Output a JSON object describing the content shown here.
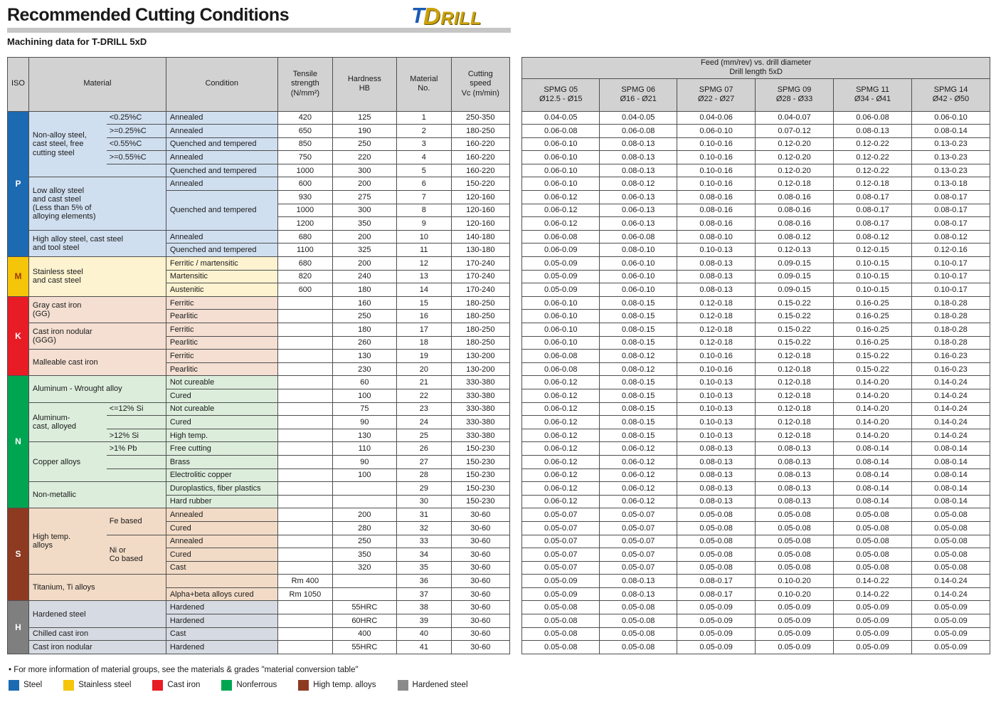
{
  "title": "Recommended Cutting Conditions",
  "subtitle": "Machining data for T-DRILL 5xD",
  "logo": {
    "t": "T",
    "drill": "DRILL"
  },
  "footnote": "• For more information of material groups, see the materials & grades \"material conversion table\"",
  "headers": {
    "iso": "ISO",
    "material": "Material",
    "condition": "Condition",
    "tensile": "Tensile\nstrength\n(N/mm²)",
    "hardness": "Hardness\nHB",
    "material_no": "Material\nNo.",
    "cutting_speed": "Cutting\nspeed\nVc (m/min)"
  },
  "feed_header": {
    "group": "Feed (mm/rev) vs. drill diameter\nDrill length 5xD",
    "columns": [
      {
        "name": "SPMG 05",
        "range": "Ø12.5 - Ø15"
      },
      {
        "name": "SPMG 06",
        "range": "Ø16 - Ø21"
      },
      {
        "name": "SPMG 07",
        "range": "Ø22 - Ø27"
      },
      {
        "name": "SPMG 09",
        "range": "Ø28 - Ø33"
      },
      {
        "name": "SPMG 11",
        "range": "Ø34 - Ø41"
      },
      {
        "name": "SPMG 14",
        "range": "Ø42 - Ø50"
      }
    ]
  },
  "iso_groups": [
    {
      "letter": "P",
      "start": 1,
      "span": 11,
      "color": "#1b6ab2",
      "letter_color": "#ffffff",
      "band": "#d0dff0"
    },
    {
      "letter": "M",
      "start": 12,
      "span": 3,
      "color": "#f5c50a",
      "letter_color": "#9c3a00",
      "band": "#fdf3d1"
    },
    {
      "letter": "K",
      "start": 15,
      "span": 6,
      "color": "#e81c25",
      "letter_color": "#ffffff",
      "band": "#f4dfd2"
    },
    {
      "letter": "N",
      "start": 21,
      "span": 10,
      "color": "#00a551",
      "letter_color": "#ffffff",
      "band": "#dceddc"
    },
    {
      "letter": "S",
      "start": 31,
      "span": 7,
      "color": "#8d3a21",
      "letter_color": "#ffffff",
      "band": "#f2dbc6"
    },
    {
      "letter": "H",
      "start": 38,
      "span": 4,
      "color": "#7f7f7f",
      "letter_color": "#ffffff",
      "band": "#d6dae2"
    }
  ],
  "material_groups": [
    {
      "name": "Non-alloy steel,\ncast steel, free\ncutting steel",
      "start": 1,
      "span": 5,
      "split": true
    },
    {
      "name": "Low alloy steel\nand cast steel\n(Less than 5% of\nalloying elements)",
      "start": 6,
      "span": 4
    },
    {
      "name": "High alloy steel, cast steel\nand tool steel",
      "start": 10,
      "span": 2
    },
    {
      "name": "Stainless steel\nand cast steel",
      "start": 12,
      "span": 3
    },
    {
      "name": "Gray cast iron\n(GG)",
      "start": 15,
      "span": 2
    },
    {
      "name": "Cast iron nodular\n(GGG)",
      "start": 17,
      "span": 2
    },
    {
      "name": "Malleable cast iron",
      "start": 19,
      "span": 2
    },
    {
      "name": "Aluminum - Wrought alloy",
      "start": 21,
      "span": 2
    },
    {
      "name": "Aluminum-\ncast, alloyed",
      "start": 23,
      "span": 3,
      "split": true
    },
    {
      "name": "Copper alloys",
      "start": 26,
      "span": 3,
      "split": true
    },
    {
      "name": "Non-metallic",
      "start": 29,
      "span": 2
    },
    {
      "name": "High temp.\nalloys",
      "start": 31,
      "span": 5,
      "split": true,
      "sub_cells": [
        {
          "label": "Fe based",
          "start": 31,
          "span": 2
        },
        {
          "label": "Ni or\nCo based",
          "start": 33,
          "span": 3
        }
      ]
    },
    {
      "name": "Titanium, Ti alloys",
      "start": 36,
      "span": 2
    },
    {
      "name": "Hardened steel",
      "start": 38,
      "span": 2
    },
    {
      "name": "Chilled cast iron",
      "start": 40,
      "span": 1
    },
    {
      "name": "Cast iron nodular",
      "start": 41,
      "span": 1
    }
  ],
  "condition_merges": [
    {
      "start": 7,
      "span": 3,
      "label": "Quenched and tempered"
    }
  ],
  "rows": [
    {
      "no": 1,
      "sub": "<0.25%C",
      "cond": "Annealed",
      "tensile": "420",
      "hb": "125",
      "vc": "250-350",
      "feed": [
        "0.04-0.05",
        "0.04-0.05",
        "0.04-0.06",
        "0.04-0.07",
        "0.06-0.08",
        "0.06-0.10"
      ]
    },
    {
      "no": 2,
      "sub": ">=0.25%C",
      "cond": "Annealed",
      "tensile": "650",
      "hb": "190",
      "vc": "180-250",
      "feed": [
        "0.06-0.08",
        "0.06-0.08",
        "0.06-0.10",
        "0.07-0.12",
        "0.08-0.13",
        "0.08-0.14"
      ]
    },
    {
      "no": 3,
      "sub": "<0.55%C",
      "cond": "Quenched and tempered",
      "tensile": "850",
      "hb": "250",
      "vc": "160-220",
      "feed": [
        "0.06-0.10",
        "0.08-0.13",
        "0.10-0.16",
        "0.12-0.20",
        "0.12-0.22",
        "0.13-0.23"
      ]
    },
    {
      "no": 4,
      "sub": ">=0.55%C",
      "cond": "Annealed",
      "tensile": "750",
      "hb": "220",
      "vc": "160-220",
      "feed": [
        "0.06-0.10",
        "0.08-0.13",
        "0.10-0.16",
        "0.12-0.20",
        "0.12-0.22",
        "0.13-0.23"
      ]
    },
    {
      "no": 5,
      "sub": "",
      "cond": "Quenched and tempered",
      "tensile": "1000",
      "hb": "300",
      "vc": "160-220",
      "feed": [
        "0.06-0.10",
        "0.08-0.13",
        "0.10-0.16",
        "0.12-0.20",
        "0.12-0.22",
        "0.13-0.23"
      ]
    },
    {
      "no": 6,
      "sub": "",
      "cond": "Annealed",
      "tensile": "600",
      "hb": "200",
      "vc": "150-220",
      "feed": [
        "0.06-0.10",
        "0.08-0.12",
        "0.10-0.16",
        "0.12-0.18",
        "0.12-0.18",
        "0.13-0.18"
      ]
    },
    {
      "no": 7,
      "sub": "",
      "cond": "",
      "tensile": "930",
      "hb": "275",
      "vc": "120-160",
      "feed": [
        "0.06-0.12",
        "0.06-0.13",
        "0.08-0.16",
        "0.08-0.16",
        "0.08-0.17",
        "0.08-0.17"
      ]
    },
    {
      "no": 8,
      "sub": "",
      "cond": "",
      "tensile": "1000",
      "hb": "300",
      "vc": "120-160",
      "feed": [
        "0.06-0.12",
        "0.06-0.13",
        "0.08-0.16",
        "0.08-0.16",
        "0.08-0.17",
        "0.08-0.17"
      ]
    },
    {
      "no": 9,
      "sub": "",
      "cond": "",
      "tensile": "1200",
      "hb": "350",
      "vc": "120-160",
      "feed": [
        "0.06-0.12",
        "0.06-0.13",
        "0.08-0.16",
        "0.08-0.16",
        "0.08-0.17",
        "0.08-0.17"
      ]
    },
    {
      "no": 10,
      "sub": "",
      "cond": "Annealed",
      "tensile": "680",
      "hb": "200",
      "vc": "140-180",
      "feed": [
        "0.06-0.08",
        "0.06-0.08",
        "0.08-0.10",
        "0.08-0.12",
        "0.08-0.12",
        "0.08-0.12"
      ]
    },
    {
      "no": 11,
      "sub": "",
      "cond": "Quenched and tempered",
      "tensile": "1100",
      "hb": "325",
      "vc": "130-180",
      "feed": [
        "0.06-0.09",
        "0.08-0.10",
        "0.10-0.13",
        "0.12-0.13",
        "0.12-0.15",
        "0.12-0.16"
      ]
    },
    {
      "no": 12,
      "sub": "",
      "cond": "Ferritic / martensitic",
      "tensile": "680",
      "hb": "200",
      "vc": "170-240",
      "feed": [
        "0.05-0.09",
        "0.06-0.10",
        "0.08-0.13",
        "0.09-0.15",
        "0.10-0.15",
        "0.10-0.17"
      ]
    },
    {
      "no": 13,
      "sub": "",
      "cond": "Martensitic",
      "tensile": "820",
      "hb": "240",
      "vc": "170-240",
      "feed": [
        "0.05-0.09",
        "0.06-0.10",
        "0.08-0.13",
        "0.09-0.15",
        "0.10-0.15",
        "0.10-0.17"
      ]
    },
    {
      "no": 14,
      "sub": "",
      "cond": "Austenitic",
      "tensile": "600",
      "hb": "180",
      "vc": "170-240",
      "feed": [
        "0.05-0.09",
        "0.06-0.10",
        "0.08-0.13",
        "0.09-0.15",
        "0.10-0.15",
        "0.10-0.17"
      ]
    },
    {
      "no": 15,
      "sub": "",
      "cond": "Ferritic",
      "tensile": "",
      "hb": "160",
      "vc": "180-250",
      "feed": [
        "0.06-0.10",
        "0.08-0.15",
        "0.12-0.18",
        "0.15-0.22",
        "0.16-0.25",
        "0.18-0.28"
      ]
    },
    {
      "no": 16,
      "sub": "",
      "cond": "Pearlitic",
      "tensile": "",
      "hb": "250",
      "vc": "180-250",
      "feed": [
        "0.06-0.10",
        "0.08-0.15",
        "0.12-0.18",
        "0.15-0.22",
        "0.16-0.25",
        "0.18-0.28"
      ]
    },
    {
      "no": 17,
      "sub": "",
      "cond": "Ferritic",
      "tensile": "",
      "hb": "180",
      "vc": "180-250",
      "feed": [
        "0.06-0.10",
        "0.08-0.15",
        "0.12-0.18",
        "0.15-0.22",
        "0.16-0.25",
        "0.18-0.28"
      ]
    },
    {
      "no": 18,
      "sub": "",
      "cond": "Pearlitic",
      "tensile": "",
      "hb": "260",
      "vc": "180-250",
      "feed": [
        "0.06-0.10",
        "0.08-0.15",
        "0.12-0.18",
        "0.15-0.22",
        "0.16-0.25",
        "0.18-0.28"
      ]
    },
    {
      "no": 19,
      "sub": "",
      "cond": "Ferritic",
      "tensile": "",
      "hb": "130",
      "vc": "130-200",
      "feed": [
        "0.06-0.08",
        "0.08-0.12",
        "0.10-0.16",
        "0.12-0.18",
        "0.15-0.22",
        "0.16-0.23"
      ]
    },
    {
      "no": 20,
      "sub": "",
      "cond": "Pearlitic",
      "tensile": "",
      "hb": "230",
      "vc": "130-200",
      "feed": [
        "0.06-0.08",
        "0.08-0.12",
        "0.10-0.16",
        "0.12-0.18",
        "0.15-0.22",
        "0.16-0.23"
      ]
    },
    {
      "no": 21,
      "sub": "",
      "cond": "Not cureable",
      "tensile": "",
      "hb": "60",
      "vc": "330-380",
      "feed": [
        "0.06-0.12",
        "0.08-0.15",
        "0.10-0.13",
        "0.12-0.18",
        "0.14-0.20",
        "0.14-0.24"
      ]
    },
    {
      "no": 22,
      "sub": "",
      "cond": "Cured",
      "tensile": "",
      "hb": "100",
      "vc": "330-380",
      "feed": [
        "0.06-0.12",
        "0.08-0.15",
        "0.10-0.13",
        "0.12-0.18",
        "0.14-0.20",
        "0.14-0.24"
      ]
    },
    {
      "no": 23,
      "sub": "<=12% Si",
      "cond": "Not cureable",
      "tensile": "",
      "hb": "75",
      "vc": "330-380",
      "feed": [
        "0.06-0.12",
        "0.08-0.15",
        "0.10-0.13",
        "0.12-0.18",
        "0.14-0.20",
        "0.14-0.24"
      ]
    },
    {
      "no": 24,
      "sub": "",
      "cond": "Cured",
      "tensile": "",
      "hb": "90",
      "vc": "330-380",
      "feed": [
        "0.06-0.12",
        "0.08-0.15",
        "0.10-0.13",
        "0.12-0.18",
        "0.14-0.20",
        "0.14-0.24"
      ]
    },
    {
      "no": 25,
      "sub": ">12% Si",
      "cond": "High temp.",
      "tensile": "",
      "hb": "130",
      "vc": "330-380",
      "feed": [
        "0.06-0.12",
        "0.08-0.15",
        "0.10-0.13",
        "0.12-0.18",
        "0.14-0.20",
        "0.14-0.24"
      ]
    },
    {
      "no": 26,
      "sub": ">1% Pb",
      "cond": "Free cutting",
      "tensile": "",
      "hb": "110",
      "vc": "150-230",
      "feed": [
        "0.06-0.12",
        "0.06-0.12",
        "0.08-0.13",
        "0.08-0.13",
        "0.08-0.14",
        "0.08-0.14"
      ]
    },
    {
      "no": 27,
      "sub": "",
      "cond": "Brass",
      "tensile": "",
      "hb": "90",
      "vc": "150-230",
      "feed": [
        "0.06-0.12",
        "0.06-0.12",
        "0.08-0.13",
        "0.08-0.13",
        "0.08-0.14",
        "0.08-0.14"
      ]
    },
    {
      "no": 28,
      "sub": "",
      "cond": "Electrolitic copper",
      "tensile": "",
      "hb": "100",
      "vc": "150-230",
      "feed": [
        "0.06-0.12",
        "0.06-0.12",
        "0.08-0.13",
        "0.08-0.13",
        "0.08-0.14",
        "0.08-0.14"
      ]
    },
    {
      "no": 29,
      "sub": "",
      "cond": "Duroplastics, fiber plastics",
      "tensile": "",
      "hb": "",
      "vc": "150-230",
      "feed": [
        "0.06-0.12",
        "0.06-0.12",
        "0.08-0.13",
        "0.08-0.13",
        "0.08-0.14",
        "0.08-0.14"
      ]
    },
    {
      "no": 30,
      "sub": "",
      "cond": "Hard rubber",
      "tensile": "",
      "hb": "",
      "vc": "150-230",
      "feed": [
        "0.06-0.12",
        "0.06-0.12",
        "0.08-0.13",
        "0.08-0.13",
        "0.08-0.14",
        "0.08-0.14"
      ]
    },
    {
      "no": 31,
      "sub": "",
      "cond": "Annealed",
      "tensile": "",
      "hb": "200",
      "vc": "30-60",
      "feed": [
        "0.05-0.07",
        "0.05-0.07",
        "0.05-0.08",
        "0.05-0.08",
        "0.05-0.08",
        "0.05-0.08"
      ]
    },
    {
      "no": 32,
      "sub": "",
      "cond": "Cured",
      "tensile": "",
      "hb": "280",
      "vc": "30-60",
      "feed": [
        "0.05-0.07",
        "0.05-0.07",
        "0.05-0.08",
        "0.05-0.08",
        "0.05-0.08",
        "0.05-0.08"
      ]
    },
    {
      "no": 33,
      "sub": "",
      "cond": "Annealed",
      "tensile": "",
      "hb": "250",
      "vc": "30-60",
      "feed": [
        "0.05-0.07",
        "0.05-0.07",
        "0.05-0.08",
        "0.05-0.08",
        "0.05-0.08",
        "0.05-0.08"
      ]
    },
    {
      "no": 34,
      "sub": "",
      "cond": "Cured",
      "tensile": "",
      "hb": "350",
      "vc": "30-60",
      "feed": [
        "0.05-0.07",
        "0.05-0.07",
        "0.05-0.08",
        "0.05-0.08",
        "0.05-0.08",
        "0.05-0.08"
      ]
    },
    {
      "no": 35,
      "sub": "",
      "cond": "Cast",
      "tensile": "",
      "hb": "320",
      "vc": "30-60",
      "feed": [
        "0.05-0.07",
        "0.05-0.07",
        "0.05-0.08",
        "0.05-0.08",
        "0.05-0.08",
        "0.05-0.08"
      ]
    },
    {
      "no": 36,
      "sub": "",
      "cond": "",
      "tensile": "Rm 400",
      "hb": "",
      "vc": "30-60",
      "feed": [
        "0.05-0.09",
        "0.08-0.13",
        "0.08-0.17",
        "0.10-0.20",
        "0.14-0.22",
        "0.14-0.24"
      ]
    },
    {
      "no": 37,
      "sub": "",
      "cond": "Alpha+beta alloys cured",
      "tensile": "Rm 1050",
      "hb": "",
      "vc": "30-60",
      "feed": [
        "0.05-0.09",
        "0.08-0.13",
        "0.08-0.17",
        "0.10-0.20",
        "0.14-0.22",
        "0.14-0.24"
      ]
    },
    {
      "no": 38,
      "sub": "",
      "cond": "Hardened",
      "tensile": "",
      "hb": "55HRC",
      "vc": "30-60",
      "feed": [
        "0.05-0.08",
        "0.05-0.08",
        "0.05-0.09",
        "0.05-0.09",
        "0.05-0.09",
        "0.05-0.09"
      ]
    },
    {
      "no": 39,
      "sub": "",
      "cond": "Hardened",
      "tensile": "",
      "hb": "60HRC",
      "vc": "30-60",
      "feed": [
        "0.05-0.08",
        "0.05-0.08",
        "0.05-0.09",
        "0.05-0.09",
        "0.05-0.09",
        "0.05-0.09"
      ]
    },
    {
      "no": 40,
      "sub": "",
      "cond": "Cast",
      "tensile": "",
      "hb": "400",
      "vc": "30-60",
      "feed": [
        "0.05-0.08",
        "0.05-0.08",
        "0.05-0.09",
        "0.05-0.09",
        "0.05-0.09",
        "0.05-0.09"
      ]
    },
    {
      "no": 41,
      "sub": "",
      "cond": "Hardened",
      "tensile": "",
      "hb": "55HRC",
      "vc": "30-60",
      "feed": [
        "0.05-0.08",
        "0.05-0.08",
        "0.05-0.09",
        "0.05-0.09",
        "0.05-0.09",
        "0.05-0.09"
      ]
    }
  ],
  "legend": [
    {
      "label": "Steel",
      "color": "#1b6ab2"
    },
    {
      "label": "Stainless steel",
      "color": "#f5c50a"
    },
    {
      "label": "Cast iron",
      "color": "#e81c25"
    },
    {
      "label": "Nonferrous",
      "color": "#00a551"
    },
    {
      "label": "High temp. alloys",
      "color": "#8d3a21"
    },
    {
      "label": "Hardened steel",
      "color": "#8a8a8a"
    }
  ]
}
